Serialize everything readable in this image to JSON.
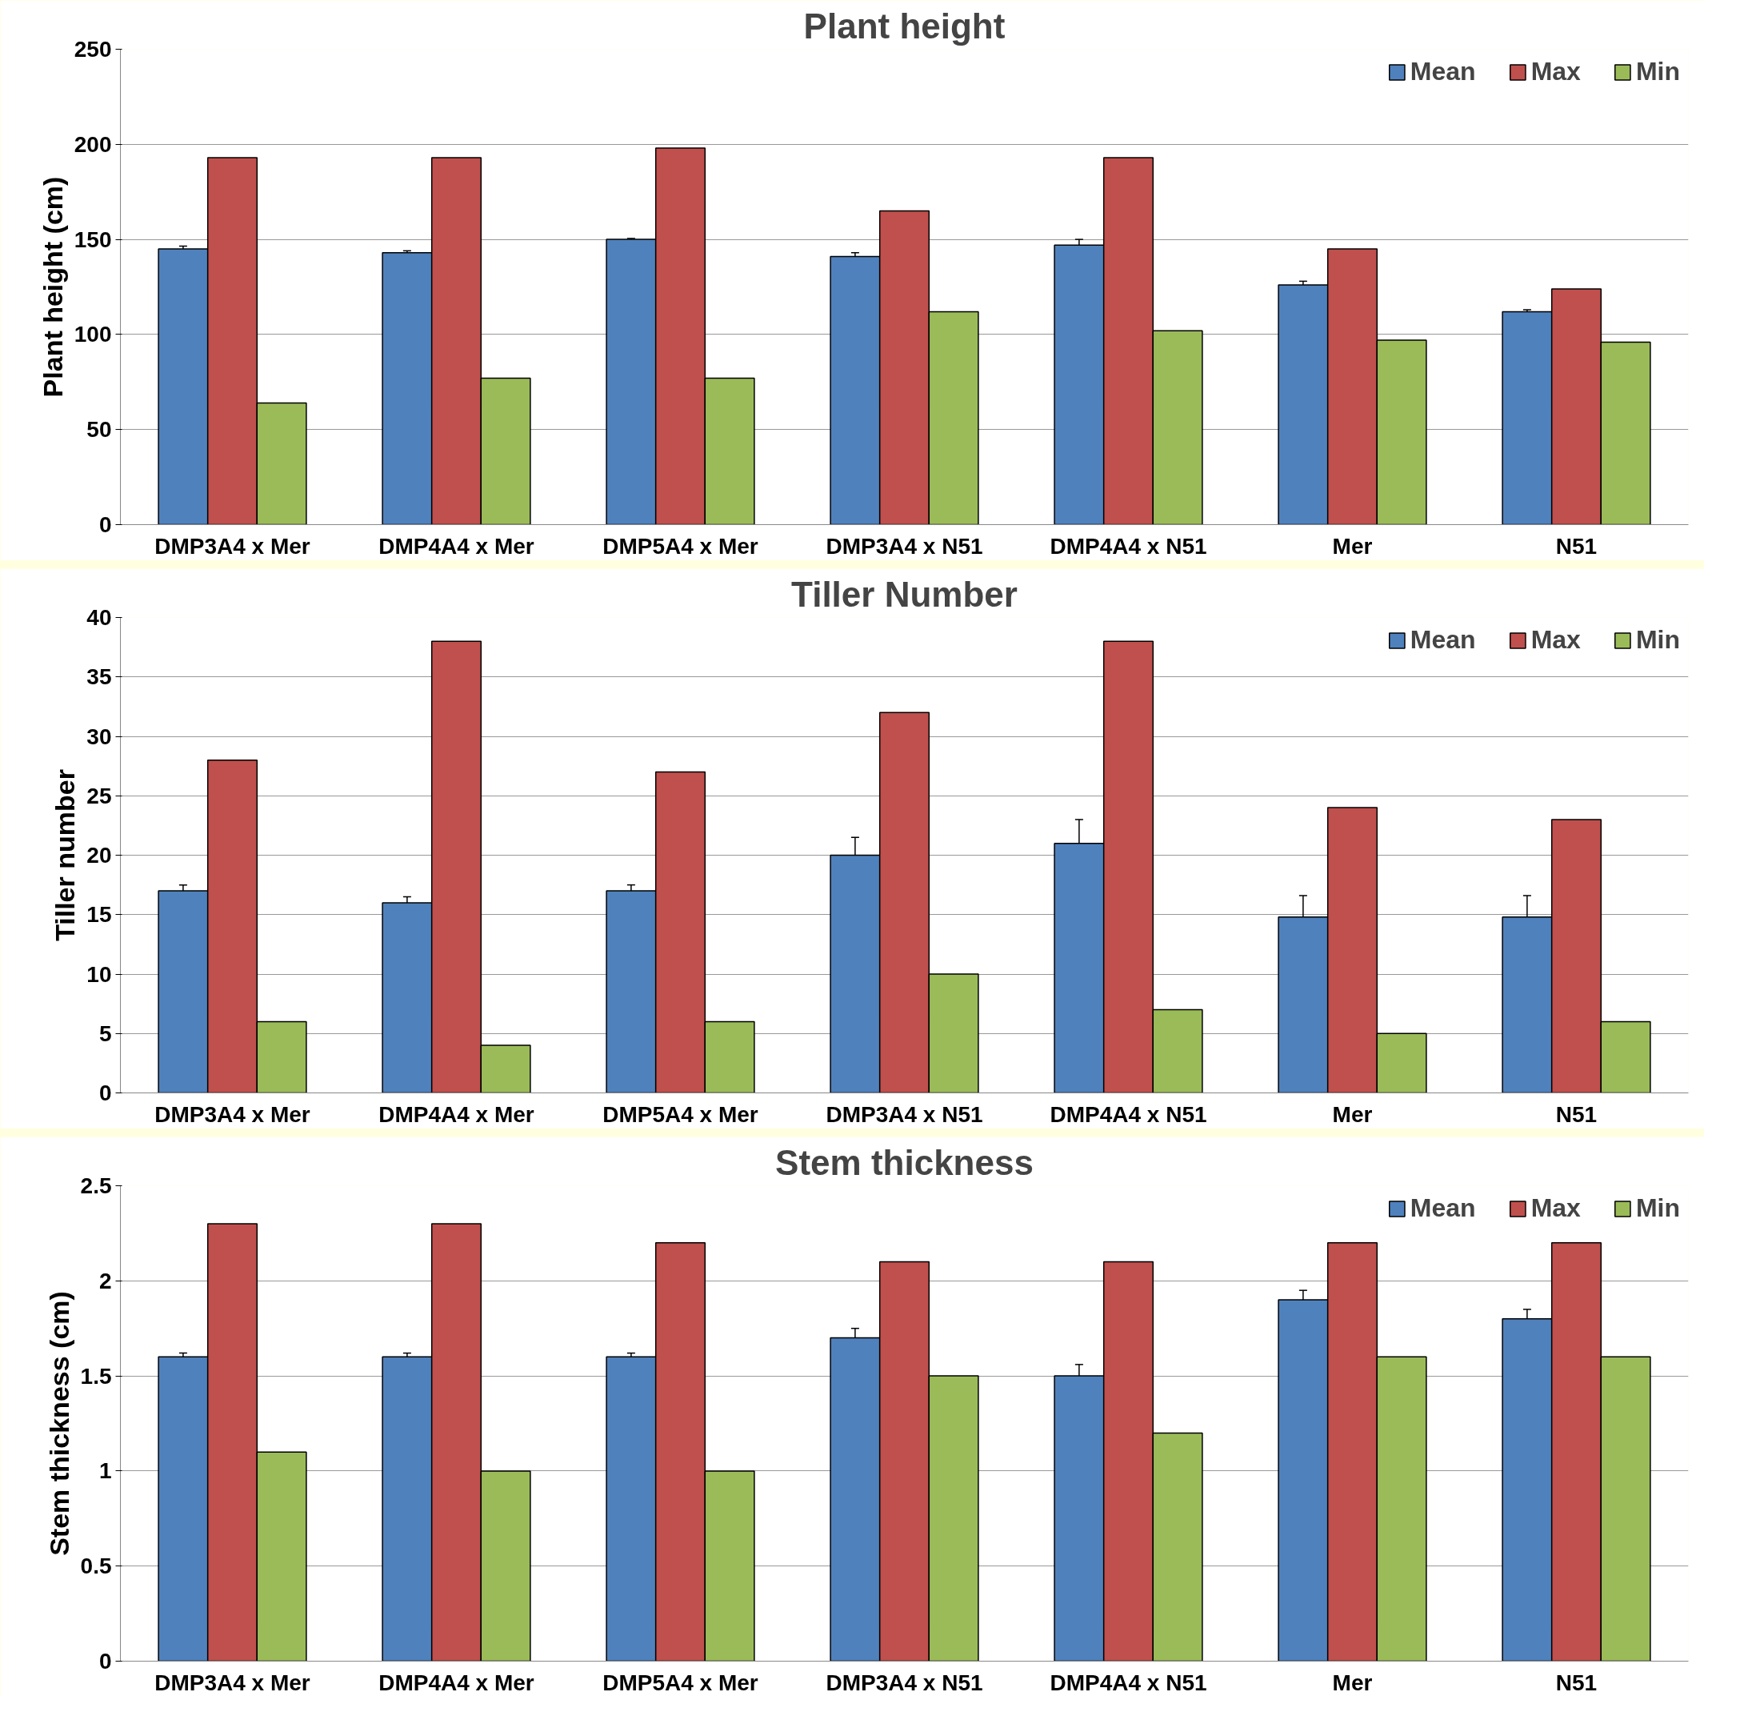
{
  "chart_data": [
    {
      "type": "bar",
      "title": "Plant height",
      "ylabel": "Plant height (cm)",
      "categories": [
        "DMP3A4 x Mer",
        "DMP4A4 x Mer",
        "DMP5A4 x Mer",
        "DMP3A4 x N51",
        "DMP4A4 x N51",
        "Mer",
        "N51"
      ],
      "ylim": [
        0,
        250
      ],
      "yticks": [
        0,
        50,
        100,
        150,
        200,
        250
      ],
      "grid": "y",
      "legend": "top right",
      "series": [
        {
          "name": "Mean",
          "color": "#4f81bd",
          "values": [
            145,
            143,
            150,
            141,
            147,
            126,
            112
          ],
          "errors": [
            1.5,
            1,
            0.5,
            2,
            3,
            2,
            1
          ]
        },
        {
          "name": "Max",
          "color": "#c0504d",
          "values": [
            193,
            193,
            198,
            165,
            193,
            145,
            124
          ]
        },
        {
          "name": "Min",
          "color": "#9bbb59",
          "values": [
            64,
            77,
            77,
            112,
            102,
            97,
            96
          ]
        }
      ]
    },
    {
      "type": "bar",
      "title": "Tiller Number",
      "ylabel": "Tiller number",
      "categories": [
        "DMP3A4 x Mer",
        "DMP4A4 x Mer",
        "DMP5A4 x Mer",
        "DMP3A4 x N51",
        "DMP4A4 x N51",
        "Mer",
        "N51"
      ],
      "ylim": [
        0,
        40
      ],
      "yticks": [
        0,
        5,
        10,
        15,
        20,
        25,
        30,
        35,
        40
      ],
      "grid": "y",
      "legend": "top right",
      "series": [
        {
          "name": "Mean",
          "color": "#4f81bd",
          "values": [
            17,
            16,
            17,
            20,
            21,
            14.8,
            14.8
          ],
          "errors": [
            0.5,
            0.5,
            0.5,
            1.5,
            2,
            1.8,
            1.8
          ]
        },
        {
          "name": "Max",
          "color": "#c0504d",
          "values": [
            28,
            38,
            27,
            32,
            38,
            24,
            23
          ]
        },
        {
          "name": "Min",
          "color": "#9bbb59",
          "values": [
            6,
            4,
            6,
            10,
            7,
            5,
            6
          ]
        }
      ]
    },
    {
      "type": "bar",
      "title": "Stem thickness",
      "ylabel": "Stem thickness (cm)",
      "categories": [
        "DMP3A4 x Mer",
        "DMP4A4 x Mer",
        "DMP5A4 x Mer",
        "DMP3A4 x N51",
        "DMP4A4 x N51",
        "Mer",
        "N51"
      ],
      "ylim": [
        0,
        2.5
      ],
      "yticks": [
        0,
        0.5,
        1,
        1.5,
        2,
        2.5
      ],
      "grid": "y",
      "legend": "top right",
      "series": [
        {
          "name": "Mean",
          "color": "#4f81bd",
          "values": [
            1.6,
            1.6,
            1.6,
            1.7,
            1.5,
            1.9,
            1.8
          ],
          "errors": [
            0.02,
            0.02,
            0.02,
            0.05,
            0.06,
            0.05,
            0.05
          ]
        },
        {
          "name": "Max",
          "color": "#c0504d",
          "values": [
            2.3,
            2.3,
            2.2,
            2.1,
            2.1,
            2.2,
            2.2
          ]
        },
        {
          "name": "Min",
          "color": "#9bbb59",
          "values": [
            1.1,
            1.0,
            1.0,
            1.5,
            1.2,
            1.6,
            1.6
          ]
        }
      ]
    }
  ]
}
